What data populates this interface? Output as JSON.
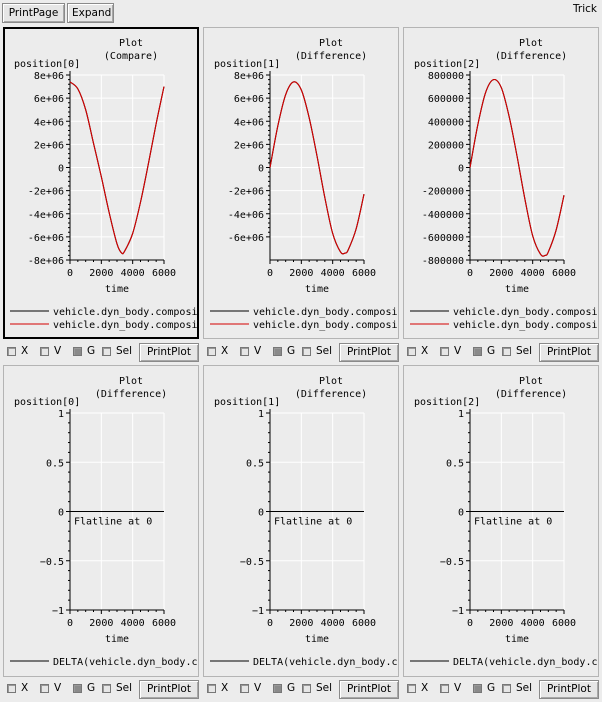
{
  "toolbar": {
    "print_page_label": "PrintPage",
    "expand_label": "Expand",
    "app_title": "Trick"
  },
  "controls": {
    "x_label": "X",
    "v_label": "V",
    "g_label": "G",
    "sel_label": "Sel",
    "print_plot_label": "PrintPlot"
  },
  "colors": {
    "series_1": "#000000",
    "series_2": "#d40000",
    "grid": "#ffffff",
    "plot_bg": "#ececec"
  },
  "chart_data": [
    {
      "type": "line",
      "title": "Plot",
      "subtitle": "(Compare)",
      "ylabel": "position[0]",
      "xlabel": "time",
      "xlim": [
        0,
        6000
      ],
      "ylim": [
        -8000000,
        8000000
      ],
      "xticks": [
        0,
        2000,
        4000,
        6000
      ],
      "xtick_labels": [
        "0",
        "2000",
        "4000",
        "6000"
      ],
      "yticks": [
        8000000,
        6000000,
        4000000,
        2000000,
        0,
        -2000000,
        -4000000,
        -6000000,
        -8000000
      ],
      "ytick_labels": [
        "8e+06",
        "6e+06",
        "4e+06",
        "2e+06",
        "0",
        "-2e+06",
        "-4e+06",
        "-6e+06",
        "-8e+06"
      ],
      "grid": true,
      "series": [
        {
          "name": "vehicle.dyn_body.composi",
          "color": "#000000",
          "x": [
            0,
            500,
            1000,
            1500,
            2000,
            2500,
            3000,
            3300,
            3500,
            4000,
            4500,
            5000,
            5500,
            6000
          ],
          "y": [
            7400000,
            6800000,
            5000000,
            2100000,
            -800000,
            -3900000,
            -6600000,
            -7400000,
            -7200000,
            -5700000,
            -3000000,
            300000,
            3800000,
            7000000
          ]
        },
        {
          "name": "vehicle.dyn_body.composi",
          "color": "#d40000",
          "x": [
            0,
            500,
            1000,
            1500,
            2000,
            2500,
            3000,
            3300,
            3500,
            4000,
            4500,
            5000,
            5500,
            6000
          ],
          "y": [
            7400000,
            6800000,
            5000000,
            2100000,
            -800000,
            -3900000,
            -6600000,
            -7400000,
            -7200000,
            -5700000,
            -3000000,
            300000,
            3800000,
            7000000
          ]
        }
      ]
    },
    {
      "type": "line",
      "title": "Plot",
      "subtitle": "(Difference)",
      "ylabel": "position[1]",
      "xlabel": "time",
      "xlim": [
        0,
        6000
      ],
      "ylim": [
        -8000000,
        8000000
      ],
      "xticks": [
        0,
        2000,
        4000,
        6000
      ],
      "xtick_labels": [
        "0",
        "2000",
        "4000",
        "6000"
      ],
      "yticks": [
        8000000,
        6000000,
        4000000,
        2000000,
        0,
        -2000000,
        -4000000,
        -6000000
      ],
      "ytick_labels": [
        "8e+06",
        "6e+06",
        "4e+06",
        "2e+06",
        "0",
        "-2e+06",
        "-4e+06",
        "-6e+06"
      ],
      "grid": true,
      "series": [
        {
          "name": "vehicle.dyn_body.composi",
          "color": "#000000",
          "x": [
            0,
            500,
            1000,
            1500,
            2000,
            2500,
            3000,
            3500,
            4000,
            4500,
            4800,
            5000,
            5500,
            6000
          ],
          "y": [
            0,
            3600000,
            6300000,
            7400000,
            6700000,
            4300000,
            1000000,
            -2600000,
            -5700000,
            -7300000,
            -7400000,
            -7100000,
            -5300000,
            -2300000
          ]
        },
        {
          "name": "vehicle.dyn_body.composi",
          "color": "#d40000",
          "x": [
            0,
            500,
            1000,
            1500,
            2000,
            2500,
            3000,
            3500,
            4000,
            4500,
            4800,
            5000,
            5500,
            6000
          ],
          "y": [
            0,
            3600000,
            6300000,
            7400000,
            6700000,
            4300000,
            1000000,
            -2600000,
            -5700000,
            -7300000,
            -7400000,
            -7100000,
            -5300000,
            -2300000
          ]
        }
      ]
    },
    {
      "type": "line",
      "title": "Plot",
      "subtitle": "(Difference)",
      "ylabel": "position[2]",
      "xlabel": "time",
      "xlim": [
        0,
        6000
      ],
      "ylim": [
        -800000,
        800000
      ],
      "xticks": [
        0,
        2000,
        4000,
        6000
      ],
      "xtick_labels": [
        "0",
        "2000",
        "4000",
        "6000"
      ],
      "yticks": [
        800000,
        600000,
        400000,
        200000,
        0,
        -200000,
        -400000,
        -600000,
        -800000
      ],
      "ytick_labels": [
        "800000",
        "600000",
        "400000",
        "200000",
        "0",
        "-200000",
        "-400000",
        "-600000",
        "-800000"
      ],
      "grid": true,
      "series": [
        {
          "name": "vehicle.dyn_body.composi",
          "color": "#000000",
          "x": [
            0,
            500,
            1000,
            1500,
            2000,
            2500,
            3000,
            3500,
            4000,
            4500,
            4800,
            5000,
            5500,
            6000
          ],
          "y": [
            0,
            370000,
            650000,
            760000,
            690000,
            440000,
            100000,
            -270000,
            -590000,
            -750000,
            -760000,
            -730000,
            -540000,
            -240000
          ]
        },
        {
          "name": "vehicle.dyn_body.composi",
          "color": "#d40000",
          "x": [
            0,
            500,
            1000,
            1500,
            2000,
            2500,
            3000,
            3500,
            4000,
            4500,
            4800,
            5000,
            5500,
            6000
          ],
          "y": [
            0,
            370000,
            650000,
            760000,
            690000,
            440000,
            100000,
            -270000,
            -590000,
            -750000,
            -760000,
            -730000,
            -540000,
            -240000
          ]
        }
      ]
    },
    {
      "type": "line",
      "title": "Plot",
      "subtitle": "(Difference)",
      "ylabel": "position[0]",
      "xlabel": "time",
      "xlim": [
        0,
        6000
      ],
      "ylim": [
        -1,
        1
      ],
      "xticks": [
        0,
        2000,
        4000,
        6000
      ],
      "xtick_labels": [
        "0",
        "2000",
        "4000",
        "6000"
      ],
      "yticks": [
        1,
        0.5,
        0,
        -0.5,
        -1
      ],
      "ytick_labels": [
        "1",
        "0.5",
        "0",
        "−0.5",
        "−1"
      ],
      "grid": true,
      "annotation": "Flatline at 0",
      "series": [
        {
          "name": "DELTA(vehicle.dyn_body.c",
          "color": "#000000",
          "x": [
            0,
            6000
          ],
          "y": [
            0,
            0
          ]
        }
      ]
    },
    {
      "type": "line",
      "title": "Plot",
      "subtitle": "(Difference)",
      "ylabel": "position[1]",
      "xlabel": "time",
      "xlim": [
        0,
        6000
      ],
      "ylim": [
        -1,
        1
      ],
      "xticks": [
        0,
        2000,
        4000,
        6000
      ],
      "xtick_labels": [
        "0",
        "2000",
        "4000",
        "6000"
      ],
      "yticks": [
        1,
        0.5,
        0,
        -0.5,
        -1
      ],
      "ytick_labels": [
        "1",
        "0.5",
        "0",
        "−0.5",
        "−1"
      ],
      "grid": true,
      "annotation": "Flatline at 0",
      "series": [
        {
          "name": "DELTA(vehicle.dyn_body.c",
          "color": "#000000",
          "x": [
            0,
            6000
          ],
          "y": [
            0,
            0
          ]
        }
      ]
    },
    {
      "type": "line",
      "title": "Plot",
      "subtitle": "(Difference)",
      "ylabel": "position[2]",
      "xlabel": "time",
      "xlim": [
        0,
        6000
      ],
      "ylim": [
        -1,
        1
      ],
      "xticks": [
        0,
        2000,
        4000,
        6000
      ],
      "xtick_labels": [
        "0",
        "2000",
        "4000",
        "6000"
      ],
      "yticks": [
        1,
        0.5,
        0,
        -0.5,
        -1
      ],
      "ytick_labels": [
        "1",
        "0.5",
        "0",
        "−0.5",
        "−1"
      ],
      "grid": true,
      "annotation": "Flatline at 0",
      "series": [
        {
          "name": "DELTA(vehicle.dyn_body.c",
          "color": "#000000",
          "x": [
            0,
            6000
          ],
          "y": [
            0,
            0
          ]
        }
      ]
    }
  ]
}
